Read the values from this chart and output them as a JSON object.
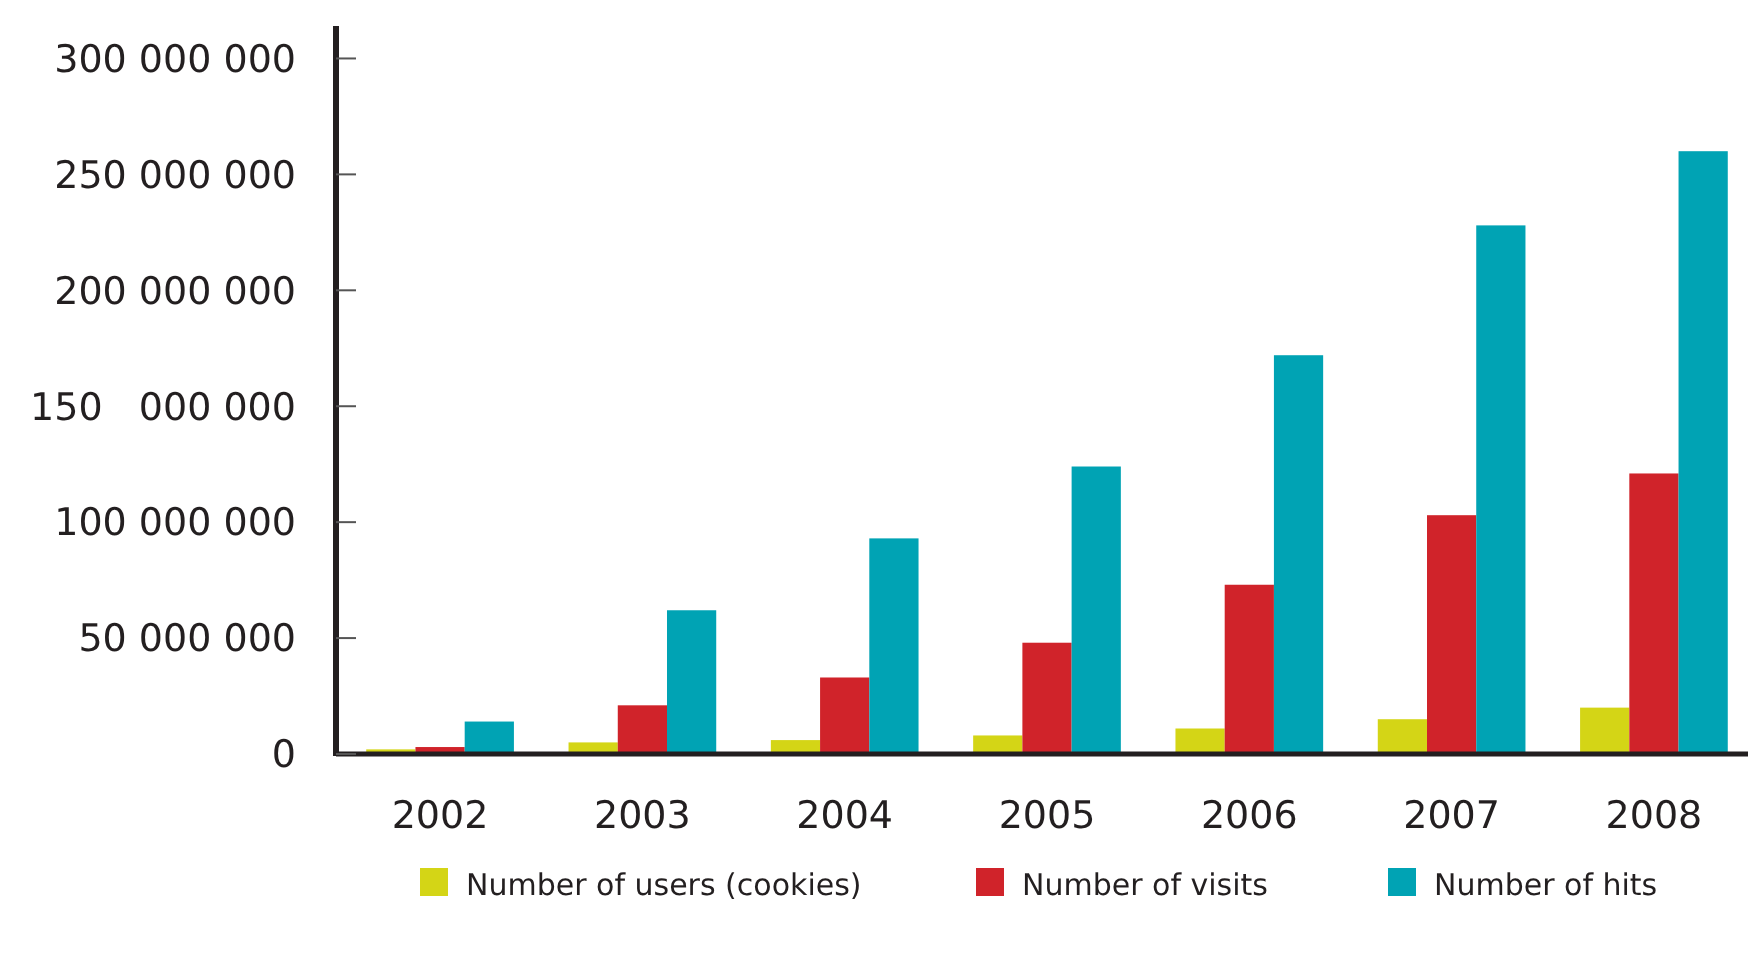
{
  "chart_data": {
    "type": "bar",
    "categories": [
      "2002",
      "2003",
      "2004",
      "2005",
      "2006",
      "2007",
      "2008"
    ],
    "series": [
      {
        "name": "Number of users (cookies)",
        "color": "#d4d516",
        "values": [
          2000000,
          5000000,
          6000000,
          8000000,
          11000000,
          15000000,
          20000000
        ]
      },
      {
        "name": "Number of visits",
        "color": "#d0232a",
        "values": [
          3000000,
          21000000,
          33000000,
          48000000,
          73000000,
          103000000,
          121000000
        ]
      },
      {
        "name": "Number of hits",
        "color": "#00a3b4",
        "values": [
          14000000,
          62000000,
          93000000,
          124000000,
          172000000,
          228000000,
          260000000
        ]
      }
    ],
    "ylim": [
      0,
      314000000
    ],
    "yticks": [
      {
        "value": 0,
        "label": "0"
      },
      {
        "value": 50000000,
        "label": "50 000 000"
      },
      {
        "value": 100000000,
        "label": "100 000 000"
      },
      {
        "value": 150000000,
        "label": "150   000 000"
      },
      {
        "value": 200000000,
        "label": "200 000 000"
      },
      {
        "value": 250000000,
        "label": "250 000 000"
      },
      {
        "value": 300000000,
        "label": "300 000 000"
      }
    ],
    "legend": "bottom",
    "grid": false
  }
}
